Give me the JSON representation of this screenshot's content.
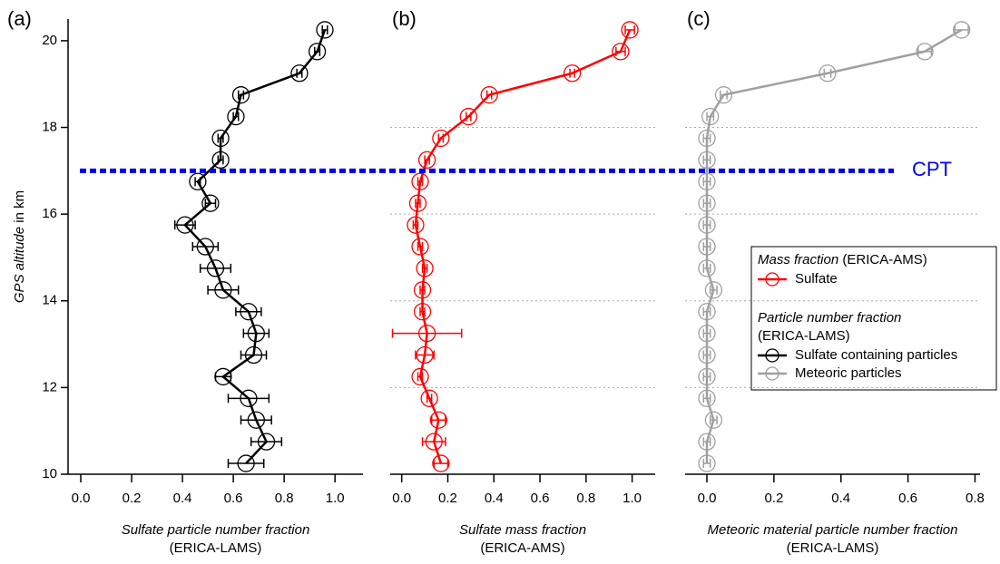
{
  "chart_data": [
    {
      "type": "line",
      "label": "(a)",
      "xlabel": "Sulfate particle number fraction",
      "xlabel_note": "(ERICA-LAMS)",
      "ylabel": "GPS altitude",
      "ylabel_unit": "in km",
      "xlim": [
        -0.05,
        1.11
      ],
      "xticks": [
        {
          "value": 0,
          "label": "0.0"
        },
        {
          "value": 0.2,
          "label": "0.2"
        },
        {
          "value": 0.4,
          "label": "0.4"
        },
        {
          "value": 0.6,
          "label": "0.6"
        },
        {
          "value": 0.8,
          "label": "0.8"
        },
        {
          "value": 1,
          "label": "1.0"
        }
      ],
      "ylim": [
        10,
        20.5
      ],
      "yticks": [
        10,
        12,
        14,
        16,
        18,
        20
      ],
      "grid": false,
      "y": [
        10.25,
        10.75,
        11.25,
        11.75,
        12.25,
        12.75,
        13.25,
        13.75,
        14.25,
        14.75,
        15.25,
        15.75,
        16.25,
        16.75,
        17.25,
        17.75,
        18.25,
        18.75,
        19.25,
        19.75,
        20.25
      ],
      "series": [
        {
          "name": "Sulfate containing particles",
          "color": "#000000",
          "values": [
            0.65,
            0.73,
            0.69,
            0.66,
            0.56,
            0.68,
            0.69,
            0.66,
            0.56,
            0.53,
            0.49,
            0.41,
            0.51,
            0.46,
            0.55,
            0.55,
            0.61,
            0.63,
            0.86,
            0.93,
            0.96
          ],
          "errors": [
            0.07,
            0.06,
            0.06,
            0.08,
            0.03,
            0.05,
            0.05,
            0.05,
            0.06,
            0.06,
            0.05,
            0.04,
            0.02,
            0.01,
            0.01,
            0.01,
            0.01,
            0.01,
            0.01,
            0.01,
            0.01
          ]
        }
      ]
    },
    {
      "type": "line",
      "label": "(b)",
      "xlabel": "Sulfate mass fraction",
      "xlabel_note": "(ERICA-AMS)",
      "xlim": [
        -0.05,
        1.1
      ],
      "xticks": [
        {
          "value": 0,
          "label": "0.0"
        },
        {
          "value": 0.2,
          "label": "0.2"
        },
        {
          "value": 0.4,
          "label": "0.4"
        },
        {
          "value": 0.6,
          "label": "0.6"
        },
        {
          "value": 0.8,
          "label": "0.8"
        },
        {
          "value": 1,
          "label": "1.0"
        }
      ],
      "grid": true,
      "y": [
        10.25,
        10.75,
        11.25,
        11.75,
        12.25,
        12.75,
        13.25,
        13.75,
        14.25,
        14.75,
        15.25,
        15.75,
        16.25,
        16.75,
        17.25,
        17.75,
        18.25,
        18.75,
        19.25,
        19.75,
        20.25
      ],
      "series": [
        {
          "name": "Sulfate",
          "color": "#ff0000",
          "values": [
            0.17,
            0.14,
            0.16,
            0.12,
            0.08,
            0.1,
            0.11,
            0.09,
            0.09,
            0.1,
            0.08,
            0.06,
            0.07,
            0.08,
            0.11,
            0.17,
            0.29,
            0.38,
            0.74,
            0.95,
            0.99
          ],
          "errors": [
            0.03,
            0.05,
            0.03,
            0.01,
            0.01,
            0.04,
            0.15,
            0.01,
            0.01,
            0.01,
            0.01,
            0.01,
            0.01,
            0.01,
            0.01,
            0.01,
            0.01,
            0.01,
            0.01,
            0.02,
            0.02
          ]
        }
      ]
    },
    {
      "type": "line",
      "label": "(c)",
      "xlabel": "Meteoric material particle number fraction",
      "xlabel_note": "(ERICA-LAMS)",
      "xlim": [
        -0.065,
        0.815
      ],
      "xticks": [
        {
          "value": 0,
          "label": "0.0"
        },
        {
          "value": 0.2,
          "label": "0.2"
        },
        {
          "value": 0.4,
          "label": "0.4"
        },
        {
          "value": 0.6,
          "label": "0.6"
        },
        {
          "value": 0.8,
          "label": "0.8"
        }
      ],
      "grid": true,
      "y": [
        10.25,
        10.75,
        11.25,
        11.75,
        12.25,
        12.75,
        13.25,
        13.75,
        14.25,
        14.75,
        15.25,
        15.75,
        16.25,
        16.75,
        17.25,
        17.75,
        18.25,
        18.75,
        19.25,
        19.75,
        20.25
      ],
      "series": [
        {
          "name": "Meteoric particles",
          "color": "#a0a0a0",
          "values": [
            0,
            0,
            0.02,
            0,
            0,
            0,
            0,
            0,
            0.02,
            0,
            0,
            0,
            0,
            0,
            0,
            0,
            0.01,
            0.05,
            0.36,
            0.65,
            0.76
          ],
          "errors": [
            0.01,
            0.01,
            0.01,
            0.01,
            0.01,
            0.01,
            0.01,
            0.01,
            0.01,
            0.01,
            0.01,
            0.01,
            0.01,
            0.01,
            0.01,
            0.01,
            0.01,
            0.01,
            0.01,
            0.02,
            0.02
          ]
        }
      ]
    }
  ],
  "cpt": {
    "label": "CPT",
    "y": 17,
    "color": "#0000ee"
  },
  "legend": {
    "groups": [
      {
        "title": "Mass fraction",
        "note": "(ERICA-AMS)"
      },
      {
        "title": "Particle number fraction",
        "note": "(ERICA-LAMS)"
      }
    ]
  }
}
